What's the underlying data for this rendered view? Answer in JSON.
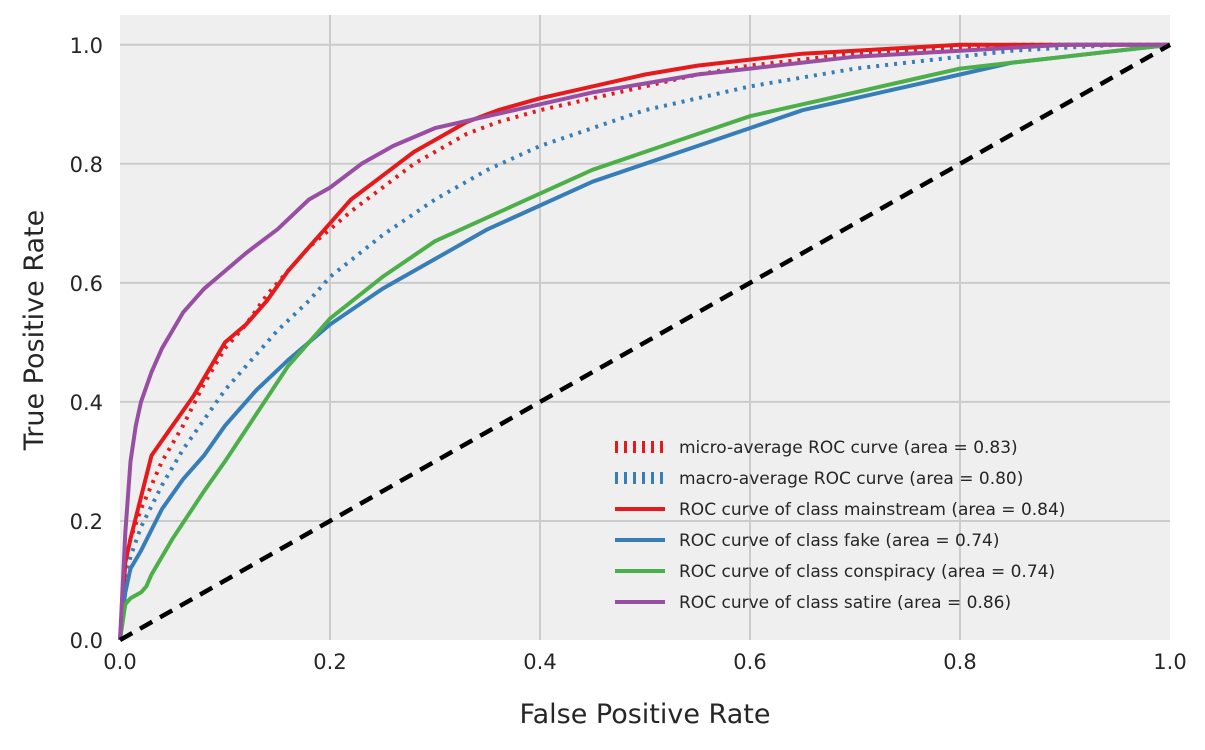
{
  "chart_data": {
    "type": "line",
    "xlabel": "False Positive Rate",
    "ylabel": "True Positive Rate",
    "xlim": [
      0.0,
      1.0
    ],
    "ylim": [
      0.0,
      1.05
    ],
    "x_ticks": [
      "0.0",
      "0.2",
      "0.4",
      "0.6",
      "0.8",
      "1.0"
    ],
    "y_ticks": [
      "0.0",
      "0.2",
      "0.4",
      "0.6",
      "0.8",
      "1.0"
    ],
    "grid": true,
    "background": "#efefef",
    "legend_position": "lower right",
    "series": [
      {
        "name": "micro-average ROC curve (area = 0.83)",
        "color": "#e41a1c",
        "style": "dotted",
        "x": [
          0,
          0.005,
          0.01,
          0.02,
          0.04,
          0.06,
          0.08,
          0.1,
          0.12,
          0.14,
          0.16,
          0.18,
          0.2,
          0.22,
          0.25,
          0.28,
          0.3,
          0.33,
          0.36,
          0.4,
          0.45,
          0.5,
          0.55,
          0.6,
          0.65,
          0.7,
          0.75,
          0.8,
          0.85,
          0.9,
          0.95,
          1.0
        ],
        "y": [
          0,
          0.13,
          0.17,
          0.22,
          0.3,
          0.36,
          0.43,
          0.49,
          0.53,
          0.58,
          0.62,
          0.66,
          0.69,
          0.72,
          0.76,
          0.8,
          0.82,
          0.85,
          0.87,
          0.89,
          0.91,
          0.93,
          0.95,
          0.965,
          0.975,
          0.985,
          0.99,
          0.995,
          1.0,
          1.0,
          1.0,
          1.0
        ]
      },
      {
        "name": "macro-average ROC curve (area = 0.80)",
        "color": "#377eb8",
        "style": "dotted",
        "x": [
          0,
          0.005,
          0.01,
          0.02,
          0.04,
          0.06,
          0.08,
          0.1,
          0.12,
          0.15,
          0.18,
          0.2,
          0.25,
          0.3,
          0.35,
          0.4,
          0.45,
          0.5,
          0.55,
          0.6,
          0.65,
          0.7,
          0.75,
          0.8,
          0.85,
          0.9,
          0.95,
          1.0
        ],
        "y": [
          0,
          0.1,
          0.14,
          0.19,
          0.26,
          0.32,
          0.37,
          0.42,
          0.46,
          0.52,
          0.57,
          0.61,
          0.68,
          0.74,
          0.79,
          0.83,
          0.86,
          0.89,
          0.91,
          0.93,
          0.945,
          0.96,
          0.97,
          0.98,
          0.99,
          0.995,
          1.0,
          1.0
        ]
      },
      {
        "name": "ROC curve of class mainstream (area = 0.84)",
        "color": "#e41a1c",
        "style": "solid",
        "x": [
          0,
          0.005,
          0.01,
          0.02,
          0.03,
          0.05,
          0.07,
          0.09,
          0.1,
          0.12,
          0.14,
          0.16,
          0.18,
          0.2,
          0.22,
          0.25,
          0.28,
          0.3,
          0.33,
          0.36,
          0.4,
          0.45,
          0.5,
          0.55,
          0.6,
          0.65,
          0.7,
          0.75,
          0.8,
          0.85,
          0.9,
          0.95,
          1.0
        ],
        "y": [
          0,
          0.13,
          0.17,
          0.24,
          0.31,
          0.36,
          0.41,
          0.47,
          0.5,
          0.53,
          0.57,
          0.62,
          0.66,
          0.7,
          0.74,
          0.78,
          0.82,
          0.84,
          0.87,
          0.89,
          0.91,
          0.93,
          0.95,
          0.965,
          0.975,
          0.985,
          0.99,
          0.995,
          1.0,
          1.0,
          1.0,
          1.0,
          1.0
        ]
      },
      {
        "name": "ROC curve of class fake (area = 0.74)",
        "color": "#377eb8",
        "style": "solid",
        "x": [
          0,
          0.005,
          0.01,
          0.02,
          0.04,
          0.06,
          0.08,
          0.1,
          0.13,
          0.16,
          0.2,
          0.25,
          0.3,
          0.35,
          0.4,
          0.45,
          0.5,
          0.55,
          0.6,
          0.65,
          0.7,
          0.75,
          0.8,
          0.85,
          0.9,
          0.95,
          1.0
        ],
        "y": [
          0,
          0.08,
          0.12,
          0.15,
          0.22,
          0.27,
          0.31,
          0.36,
          0.42,
          0.47,
          0.53,
          0.59,
          0.64,
          0.69,
          0.73,
          0.77,
          0.8,
          0.83,
          0.86,
          0.89,
          0.91,
          0.93,
          0.95,
          0.97,
          0.98,
          0.99,
          1.0
        ]
      },
      {
        "name": "ROC curve of class conspiracy (area = 0.74)",
        "color": "#4daf4a",
        "style": "solid",
        "x": [
          0,
          0.005,
          0.01,
          0.02,
          0.025,
          0.03,
          0.05,
          0.08,
          0.1,
          0.13,
          0.16,
          0.2,
          0.25,
          0.3,
          0.35,
          0.4,
          0.45,
          0.5,
          0.55,
          0.6,
          0.65,
          0.7,
          0.75,
          0.8,
          0.85,
          0.9,
          0.95,
          1.0
        ],
        "y": [
          0,
          0.06,
          0.07,
          0.08,
          0.09,
          0.11,
          0.17,
          0.25,
          0.3,
          0.38,
          0.46,
          0.54,
          0.61,
          0.67,
          0.71,
          0.75,
          0.79,
          0.82,
          0.85,
          0.88,
          0.9,
          0.92,
          0.94,
          0.96,
          0.97,
          0.98,
          0.99,
          1.0
        ]
      },
      {
        "name": "ROC curve of class satire (area = 0.86)",
        "color": "#984ea3",
        "style": "solid",
        "x": [
          0,
          0.005,
          0.01,
          0.015,
          0.02,
          0.03,
          0.04,
          0.05,
          0.06,
          0.08,
          0.1,
          0.12,
          0.15,
          0.18,
          0.2,
          0.23,
          0.26,
          0.3,
          0.35,
          0.4,
          0.45,
          0.5,
          0.55,
          0.6,
          0.65,
          0.7,
          0.75,
          0.8,
          0.85,
          0.9,
          0.95,
          1.0
        ],
        "y": [
          0,
          0.18,
          0.3,
          0.36,
          0.4,
          0.45,
          0.49,
          0.52,
          0.55,
          0.59,
          0.62,
          0.65,
          0.69,
          0.74,
          0.76,
          0.8,
          0.83,
          0.86,
          0.88,
          0.9,
          0.92,
          0.935,
          0.95,
          0.96,
          0.97,
          0.98,
          0.985,
          0.99,
          0.995,
          1.0,
          1.0,
          1.0
        ]
      },
      {
        "name": "",
        "color": "#000000",
        "style": "dashed",
        "x": [
          0,
          1
        ],
        "y": [
          0,
          1
        ]
      }
    ]
  }
}
